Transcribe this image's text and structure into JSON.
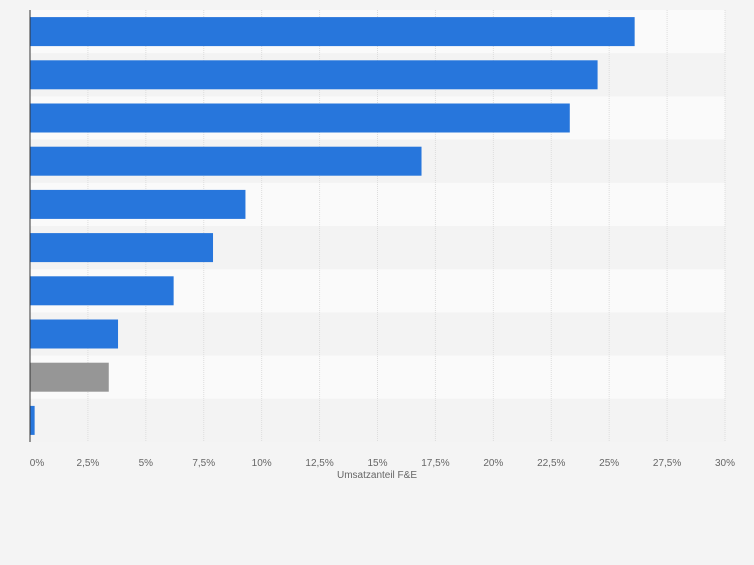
{
  "chart_data": {
    "type": "bar",
    "orientation": "horizontal",
    "categories": [
      "",
      "",
      "",
      "",
      "",
      "",
      "",
      "",
      "",
      ""
    ],
    "values": [
      26.1,
      24.5,
      23.3,
      16.9,
      9.3,
      7.9,
      6.2,
      3.8,
      3.4,
      0.2
    ],
    "bar_colors": [
      "#2776dc",
      "#2776dc",
      "#2776dc",
      "#2776dc",
      "#2776dc",
      "#2776dc",
      "#2776dc",
      "#2776dc",
      "#969696",
      "#2776dc"
    ],
    "xlim": [
      0,
      30
    ],
    "xticks": [
      0,
      2.5,
      5,
      7.5,
      10,
      12.5,
      15,
      17.5,
      20,
      22.5,
      25,
      27.5,
      30
    ],
    "xtick_labels": [
      "0%",
      "2,5%",
      "5%",
      "7,5%",
      "10%",
      "12,5%",
      "15%",
      "17,5%",
      "20%",
      "22,5%",
      "25%",
      "27,5%",
      "30%"
    ],
    "xlabel": "Umsatzanteil F&E",
    "ylabel": "",
    "title": "",
    "grid": true,
    "legend": "none"
  },
  "colors": {
    "background": "#f4f4f4",
    "band_light": "#fafafa",
    "band_dark": "#f3f3f3",
    "grid": "#dddddd",
    "axis": "#333333",
    "tick_text": "#666666"
  }
}
